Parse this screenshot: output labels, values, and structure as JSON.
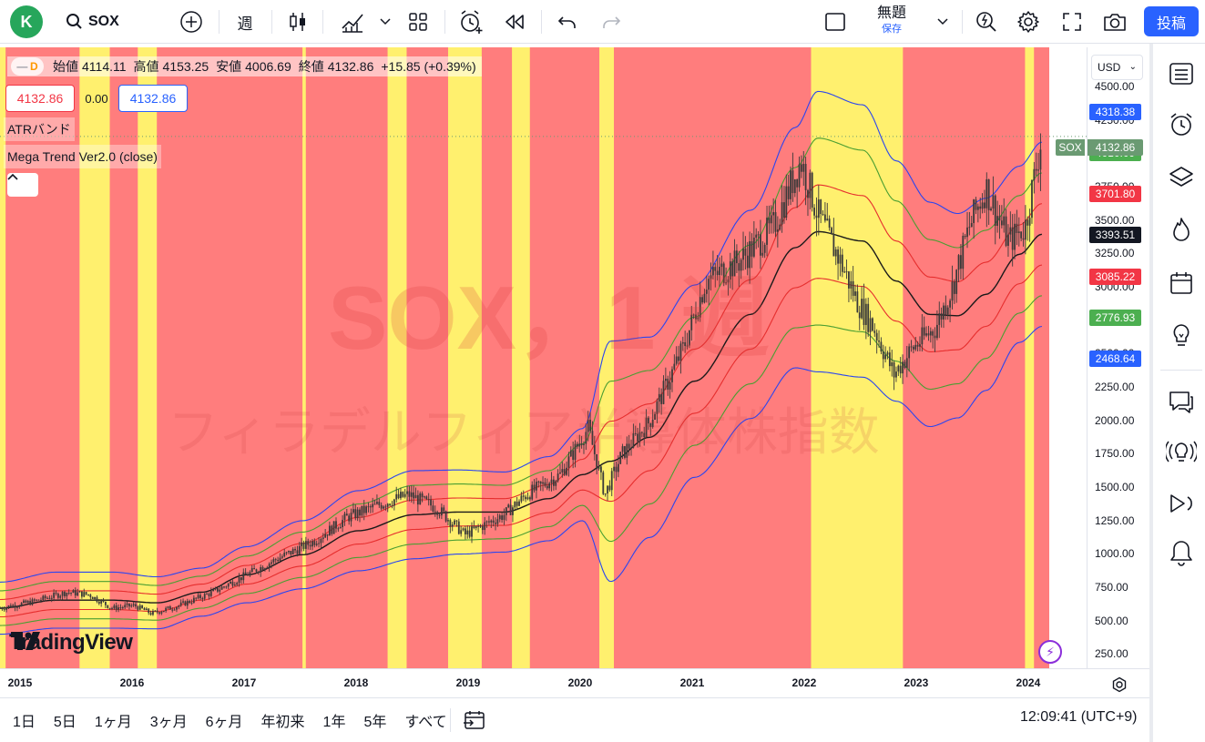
{
  "toolbar": {
    "avatar_letter": "K",
    "symbol": "SOX",
    "interval": "週",
    "layout_name": "無題",
    "save_label": "保存",
    "publish_label": "投稿"
  },
  "legend": {
    "interval_badge": "D",
    "open_label": "始値",
    "open": "4114.11",
    "high_label": "高値",
    "high": "4153.25",
    "low_label": "安値",
    "low": "4006.69",
    "close_label": "終値",
    "close": "4132.86",
    "change": "+15.85 (+0.39%)",
    "bid": "4132.86",
    "spread": "0.00",
    "ask": "4132.86",
    "indicator_1": "ATRバンド",
    "indicator_2": "Mega Trend Ver2.0 (close)"
  },
  "watermark": {
    "line1": "SOX，1 週",
    "line2": "フィラデルフィア半導体株指数"
  },
  "price_axis": {
    "currency": "USD",
    "ticks": [
      "4500.00",
      "4250.00",
      "4000.00",
      "3750.00",
      "3500.00",
      "3250.00",
      "3000.00",
      "2750.00",
      "2500.00",
      "2250.00",
      "2000.00",
      "1750.00",
      "1500.00",
      "1250.00",
      "1000.00",
      "750.00",
      "500.00",
      "250.00"
    ],
    "badges": [
      {
        "text": "4318.38",
        "color": "#2962ff",
        "value": 4318.38
      },
      {
        "text": "4010.09",
        "color": "#4caf50",
        "value": 4010.09
      },
      {
        "text": "3701.80",
        "color": "#f23645",
        "value": 3701.8
      },
      {
        "text": "3393.51",
        "color": "#131722",
        "value": 3393.51
      },
      {
        "text": "3085.22",
        "color": "#f23645",
        "value": 3085.22
      },
      {
        "text": "2776.93",
        "color": "#4caf50",
        "value": 2776.93
      },
      {
        "text": "2468.64",
        "color": "#2962ff",
        "value": 2468.64
      }
    ],
    "last_symbol": "SOX",
    "last_price": "4132.86",
    "last_color": "#6a9a72"
  },
  "time_axis": {
    "labels": [
      "2015",
      "2016",
      "2017",
      "2018",
      "2019",
      "2020",
      "2021",
      "2022",
      "2023",
      "2024"
    ]
  },
  "bottom_bar": {
    "ranges": [
      "1日",
      "5日",
      "1ヶ月",
      "3ヶ月",
      "6ヶ月",
      "年初来",
      "1年",
      "5年",
      "すべて"
    ],
    "clock": "12:09:41 (UTC+9)"
  },
  "colors": {
    "bg_red": "#ff7d7d",
    "bg_yellow": "#fff06e",
    "band_outer": "#2a45f0",
    "band_mid": "#4a9e32",
    "band_inner": "#e62e2e",
    "center": "#1a1a1a",
    "candle": "#3a3a3a"
  },
  "chart_data": {
    "type": "candlestick",
    "symbol": "SOX",
    "ylim": [
      150,
      4800
    ],
    "x_range_years": [
      2014.8,
      2024.15
    ],
    "x_labels": [
      "2015",
      "2016",
      "2017",
      "2018",
      "2019",
      "2020",
      "2021",
      "2022",
      "2023",
      "2024"
    ],
    "bands_series": [
      "upper_outer",
      "upper_mid",
      "upper_inner",
      "center",
      "lower_inner",
      "lower_mid",
      "lower_outer"
    ],
    "bands": [
      {
        "t": 2014.8,
        "c": 600,
        "w": 130
      },
      {
        "t": 2015.3,
        "c": 660,
        "w": 140
      },
      {
        "t": 2015.8,
        "c": 660,
        "w": 140
      },
      {
        "t": 2016.2,
        "c": 640,
        "w": 130
      },
      {
        "t": 2016.6,
        "c": 720,
        "w": 120
      },
      {
        "t": 2017.0,
        "c": 850,
        "w": 140
      },
      {
        "t": 2017.5,
        "c": 1000,
        "w": 170
      },
      {
        "t": 2018.0,
        "c": 1180,
        "w": 200
      },
      {
        "t": 2018.5,
        "c": 1300,
        "w": 220
      },
      {
        "t": 2018.9,
        "c": 1320,
        "w": 210
      },
      {
        "t": 2019.3,
        "c": 1320,
        "w": 200
      },
      {
        "t": 2019.7,
        "c": 1420,
        "w": 210
      },
      {
        "t": 2020.0,
        "c": 1600,
        "w": 230
      },
      {
        "t": 2020.25,
        "c": 1700,
        "w": 600
      },
      {
        "t": 2020.6,
        "c": 1880,
        "w": 500
      },
      {
        "t": 2021.0,
        "c": 2300,
        "w": 480
      },
      {
        "t": 2021.5,
        "c": 2800,
        "w": 520
      },
      {
        "t": 2021.9,
        "c": 3300,
        "w": 600
      },
      {
        "t": 2022.1,
        "c": 3420,
        "w": 700
      },
      {
        "t": 2022.5,
        "c": 3350,
        "w": 680
      },
      {
        "t": 2022.8,
        "c": 3050,
        "w": 600
      },
      {
        "t": 2023.1,
        "c": 2800,
        "w": 560
      },
      {
        "t": 2023.35,
        "c": 2790,
        "w": 510
      },
      {
        "t": 2023.6,
        "c": 2950,
        "w": 480
      },
      {
        "t": 2023.9,
        "c": 3250,
        "w": 440
      },
      {
        "t": 2024.1,
        "c": 3400,
        "w": 460
      }
    ],
    "price_path": [
      [
        2014.8,
        600
      ],
      [
        2015.1,
        650
      ],
      [
        2015.4,
        720
      ],
      [
        2015.6,
        700
      ],
      [
        2015.8,
        600
      ],
      [
        2016.0,
        620
      ],
      [
        2016.15,
        560
      ],
      [
        2016.4,
        620
      ],
      [
        2016.7,
        720
      ],
      [
        2017.0,
        850
      ],
      [
        2017.3,
        980
      ],
      [
        2017.6,
        1100
      ],
      [
        2017.9,
        1280
      ],
      [
        2018.2,
        1380
      ],
      [
        2018.45,
        1450
      ],
      [
        2018.7,
        1350
      ],
      [
        2018.95,
        1150
      ],
      [
        2019.3,
        1300
      ],
      [
        2019.5,
        1450
      ],
      [
        2019.8,
        1600
      ],
      [
        2020.05,
        1950
      ],
      [
        2020.2,
        1450
      ],
      [
        2020.35,
        1750
      ],
      [
        2020.6,
        2000
      ],
      [
        2020.9,
        2550
      ],
      [
        2021.1,
        3050
      ],
      [
        2021.4,
        3200
      ],
      [
        2021.7,
        3450
      ],
      [
        2021.95,
        3950
      ],
      [
        2022.1,
        3550
      ],
      [
        2022.3,
        3200
      ],
      [
        2022.45,
        2900
      ],
      [
        2022.6,
        2700
      ],
      [
        2022.78,
        2350
      ],
      [
        2022.95,
        2550
      ],
      [
        2023.15,
        2700
      ],
      [
        2023.3,
        3000
      ],
      [
        2023.45,
        3450
      ],
      [
        2023.6,
        3750
      ],
      [
        2023.8,
        3350
      ],
      [
        2023.95,
        3450
      ],
      [
        2024.1,
        4132.86
      ]
    ],
    "regimes": [
      {
        "start": 2014.8,
        "end": 2014.85,
        "state": "yellow"
      },
      {
        "start": 2015.51,
        "end": 2015.78,
        "state": "yellow"
      },
      {
        "start": 2016.03,
        "end": 2016.2,
        "state": "yellow"
      },
      {
        "start": 2017.5,
        "end": 2017.53,
        "state": "yellow"
      },
      {
        "start": 2018.26,
        "end": 2018.43,
        "state": "yellow"
      },
      {
        "start": 2018.8,
        "end": 2019.1,
        "state": "yellow"
      },
      {
        "start": 2019.37,
        "end": 2019.53,
        "state": "yellow"
      },
      {
        "start": 2020.15,
        "end": 2020.28,
        "state": "yellow"
      },
      {
        "start": 2022.04,
        "end": 2022.86,
        "state": "yellow"
      },
      {
        "start": 2023.95,
        "end": 2024.03,
        "state": "yellow"
      }
    ]
  }
}
